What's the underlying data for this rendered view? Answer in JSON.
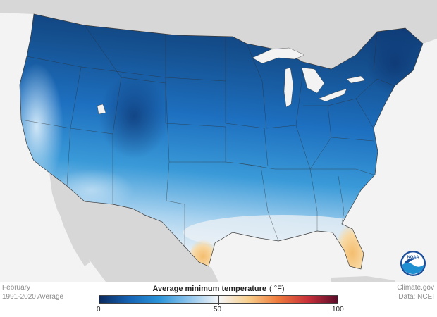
{
  "info": {
    "period_line1": "February",
    "period_line2": "1991-2020 Average",
    "source_line1": "Climate.gov",
    "source_line2": "Data: NCEI"
  },
  "legend": {
    "title": "Average minimum temperature",
    "unit": "( °F)",
    "ticks": [
      "0",
      "50",
      "100"
    ],
    "colors": [
      "#0b2a5e",
      "#1563b4",
      "#2a93d8",
      "#8dc4ec",
      "#f4f6f8",
      "#f8cf8c",
      "#ee7a3c",
      "#c8303a",
      "#5a0c2a"
    ]
  },
  "logo": {
    "text": "NOAA",
    "colors": {
      "ring": "#1a4f9c",
      "water": "#1e8fd1",
      "bird": "#ffffff"
    }
  },
  "map": {
    "colors": {
      "background": "#f3f3f3",
      "neighbors": "#d7d7d7",
      "lakes": "#f3f3f3",
      "borders": "#3a3a3a"
    }
  }
}
